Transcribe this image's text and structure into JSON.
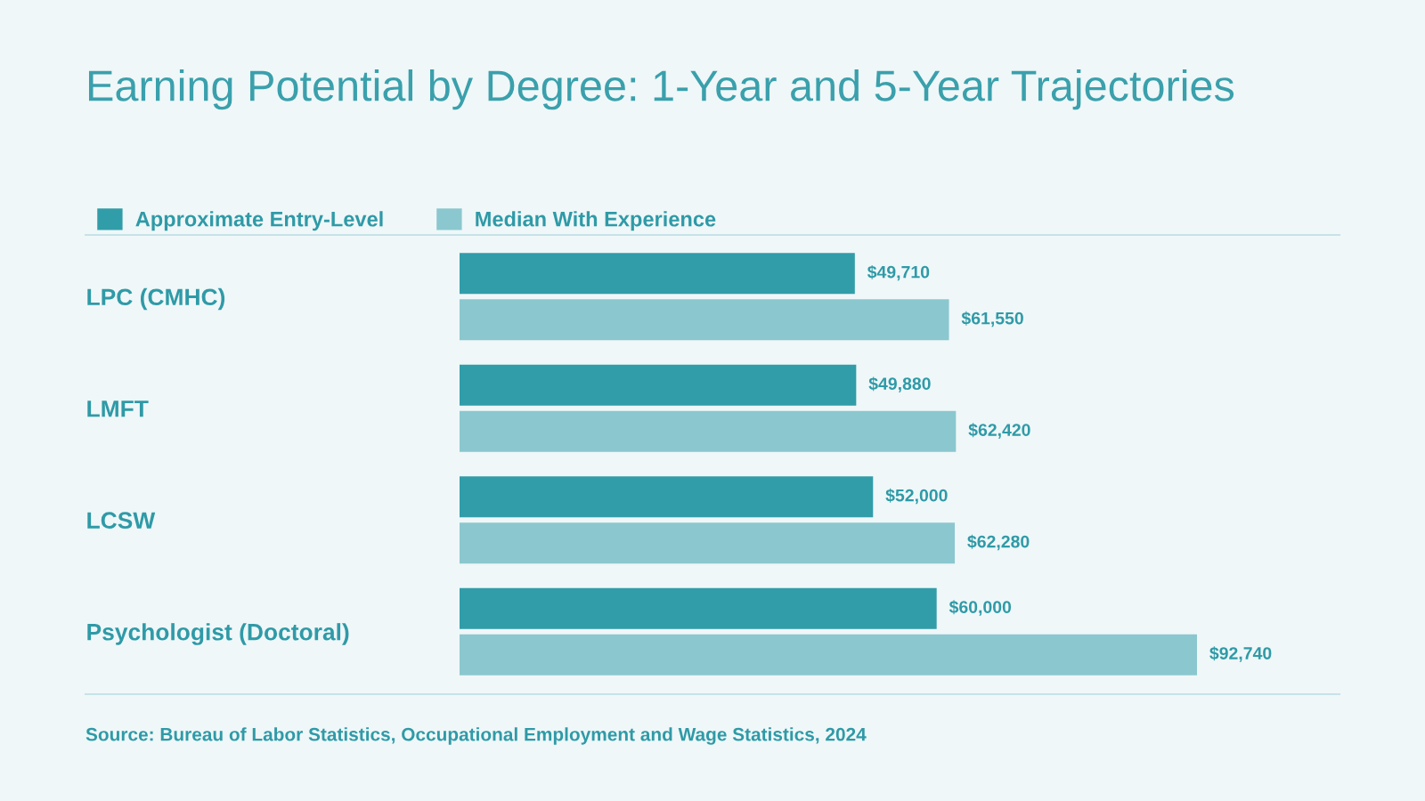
{
  "chart_data": {
    "type": "bar",
    "orientation": "horizontal",
    "title": "Earning Potential by Degree: 1-Year and 5-Year Trajectories",
    "categories": [
      "LPC (CMHC)",
      "LMFT",
      "LCSW",
      "Psychologist (Doctoral)"
    ],
    "series": [
      {
        "name": "Approximate Entry-Level",
        "color": "#319da9",
        "values": [
          49710,
          49880,
          52000,
          60000
        ],
        "value_labels": [
          "$49,710",
          "$49,880",
          "$52,000",
          "$60,000"
        ]
      },
      {
        "name": "Median With Experience",
        "color": "#8bc7cf",
        "values": [
          61550,
          62420,
          62280,
          92740
        ],
        "value_labels": [
          "$61,550",
          "$62,420",
          "$62,280",
          "$92,740"
        ]
      }
    ],
    "legend": "top left",
    "grid": false,
    "annotations": [
      "Source: Bureau of Labor Statistics, Occupational Employment and Wage Statistics, 2024"
    ]
  }
}
